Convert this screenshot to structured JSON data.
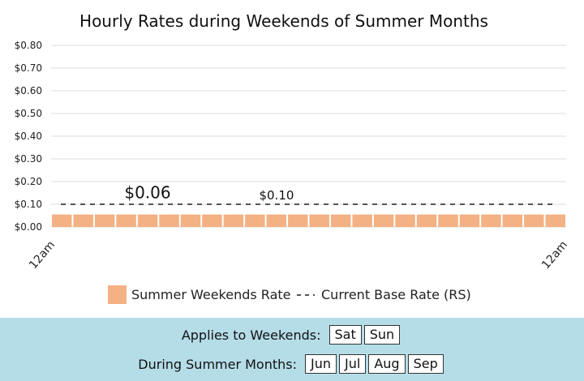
{
  "chart_data": {
    "type": "bar",
    "title": "Hourly Rates during Weekends of Summer Months",
    "y_ticks": [
      "$0.80",
      "$0.70",
      "$0.60",
      "$0.50",
      "$0.40",
      "$0.30",
      "$0.20",
      "$0.10",
      "$0.00"
    ],
    "ylim": [
      0,
      0.8
    ],
    "x_tick_labels": [
      "12am",
      "12am"
    ],
    "hours": 24,
    "series": [
      {
        "name": "Summer Weekends Rate",
        "values": [
          0.055,
          0.055,
          0.055,
          0.055,
          0.055,
          0.055,
          0.055,
          0.055,
          0.055,
          0.055,
          0.055,
          0.055,
          0.055,
          0.055,
          0.055,
          0.055,
          0.055,
          0.055,
          0.055,
          0.055,
          0.055,
          0.055,
          0.055,
          0.055
        ],
        "color": "#f4b183"
      },
      {
        "name": "Current Base Rate (RS)",
        "value": 0.1,
        "style": "dashed",
        "color": "#555555"
      }
    ],
    "annotations": [
      {
        "text": "$0.06",
        "refers_to": "Summer Weekends Rate"
      },
      {
        "text": "$0.10",
        "refers_to": "Current Base Rate (RS)"
      }
    ],
    "grid": true,
    "legend_position": "bottom"
  },
  "footer": {
    "weekends_label": "Applies to Weekends:",
    "days": [
      "Sat",
      "Sun"
    ],
    "months_label": "During Summer Months:",
    "months": [
      "Jun",
      "Jul",
      "Aug",
      "Sep"
    ]
  }
}
